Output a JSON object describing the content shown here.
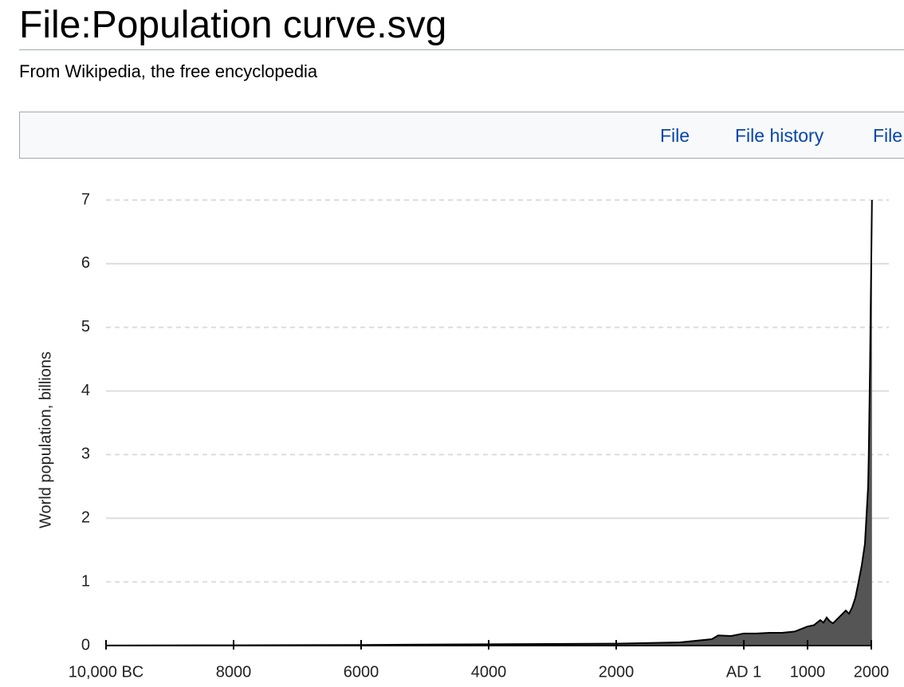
{
  "header": {
    "title": "File:Population curve.svg",
    "subtitle": "From Wikipedia, the free encyclopedia"
  },
  "tabs": [
    "File",
    "File history",
    "File"
  ],
  "chart_data": {
    "type": "area",
    "y_label": "World population, billions",
    "color": "#555555",
    "x": [
      -10000,
      -8000,
      -6000,
      -4000,
      -2000,
      -1000,
      -500,
      -400,
      -200,
      1,
      200,
      400,
      600,
      800,
      1000,
      1100,
      1200,
      1250,
      1300,
      1350,
      1400,
      1500,
      1600,
      1650,
      1700,
      1750,
      1800,
      1850,
      1900,
      1950,
      1960,
      1970,
      1980,
      1990,
      2000,
      2010
    ],
    "values": [
      0.002,
      0.005,
      0.01,
      0.02,
      0.03,
      0.05,
      0.1,
      0.16,
      0.15,
      0.19,
      0.19,
      0.2,
      0.2,
      0.22,
      0.3,
      0.32,
      0.4,
      0.36,
      0.44,
      0.38,
      0.35,
      0.45,
      0.55,
      0.5,
      0.6,
      0.75,
      1.0,
      1.26,
      1.6,
      2.5,
      3.0,
      3.7,
      4.4,
      5.3,
      6.1,
      7.0
    ],
    "xlim": [
      -10000,
      2010
    ],
    "xticks": [
      {
        "value": -10000,
        "label": "10,000 BC"
      },
      {
        "value": -8000,
        "label": "8000"
      },
      {
        "value": -6000,
        "label": "6000"
      },
      {
        "value": -4000,
        "label": "4000"
      },
      {
        "value": -2000,
        "label": "2000"
      },
      {
        "value": 1,
        "label": "AD 1"
      },
      1000,
      2000
    ],
    "ylim": [
      0,
      7
    ],
    "yticks": [
      0,
      1,
      2,
      3,
      4,
      5,
      6,
      7
    ],
    "grid": true
  }
}
